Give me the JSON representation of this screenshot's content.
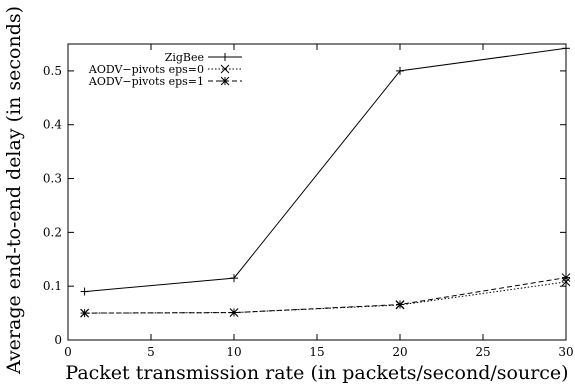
{
  "chart_data": {
    "type": "line",
    "title": "",
    "xlabel": "Packet transmission rate (in packets/second/source)",
    "ylabel": "Average end-to-end delay (in seconds)",
    "xlim": [
      0,
      30
    ],
    "ylim": [
      0,
      0.55
    ],
    "xticks": [
      0,
      5,
      10,
      15,
      20,
      25,
      30
    ],
    "yticks": [
      0,
      0.1,
      0.2,
      0.3,
      0.4,
      0.5
    ],
    "grid": false,
    "legend_position": "top-left",
    "series": [
      {
        "name": "ZigBee",
        "x": [
          1,
          10,
          20,
          30
        ],
        "values": [
          0.09,
          0.115,
          0.5,
          0.542
        ],
        "marker": "plus",
        "dash": "solid",
        "color": "#000000"
      },
      {
        "name": "AODV−pivots eps=0",
        "x": [
          1,
          10,
          20,
          30
        ],
        "values": [
          0.05,
          0.051,
          0.065,
          0.108
        ],
        "marker": "x",
        "dash": "dotted",
        "color": "#000000"
      },
      {
        "name": "AODV−pivots eps=1",
        "x": [
          1,
          10,
          20,
          30
        ],
        "values": [
          0.05,
          0.051,
          0.066,
          0.116
        ],
        "marker": "star",
        "dash": "dashed",
        "color": "#000000"
      }
    ]
  }
}
